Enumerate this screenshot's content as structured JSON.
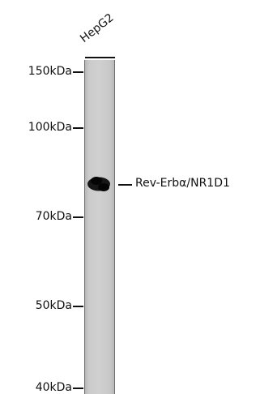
{
  "lane": {
    "label": "HepG2"
  },
  "markers": [
    "150kDa",
    "100kDa",
    "70kDa",
    "50kDa",
    "40kDa"
  ],
  "band": {
    "label": "Rev-Erbα/NR1D1"
  }
}
